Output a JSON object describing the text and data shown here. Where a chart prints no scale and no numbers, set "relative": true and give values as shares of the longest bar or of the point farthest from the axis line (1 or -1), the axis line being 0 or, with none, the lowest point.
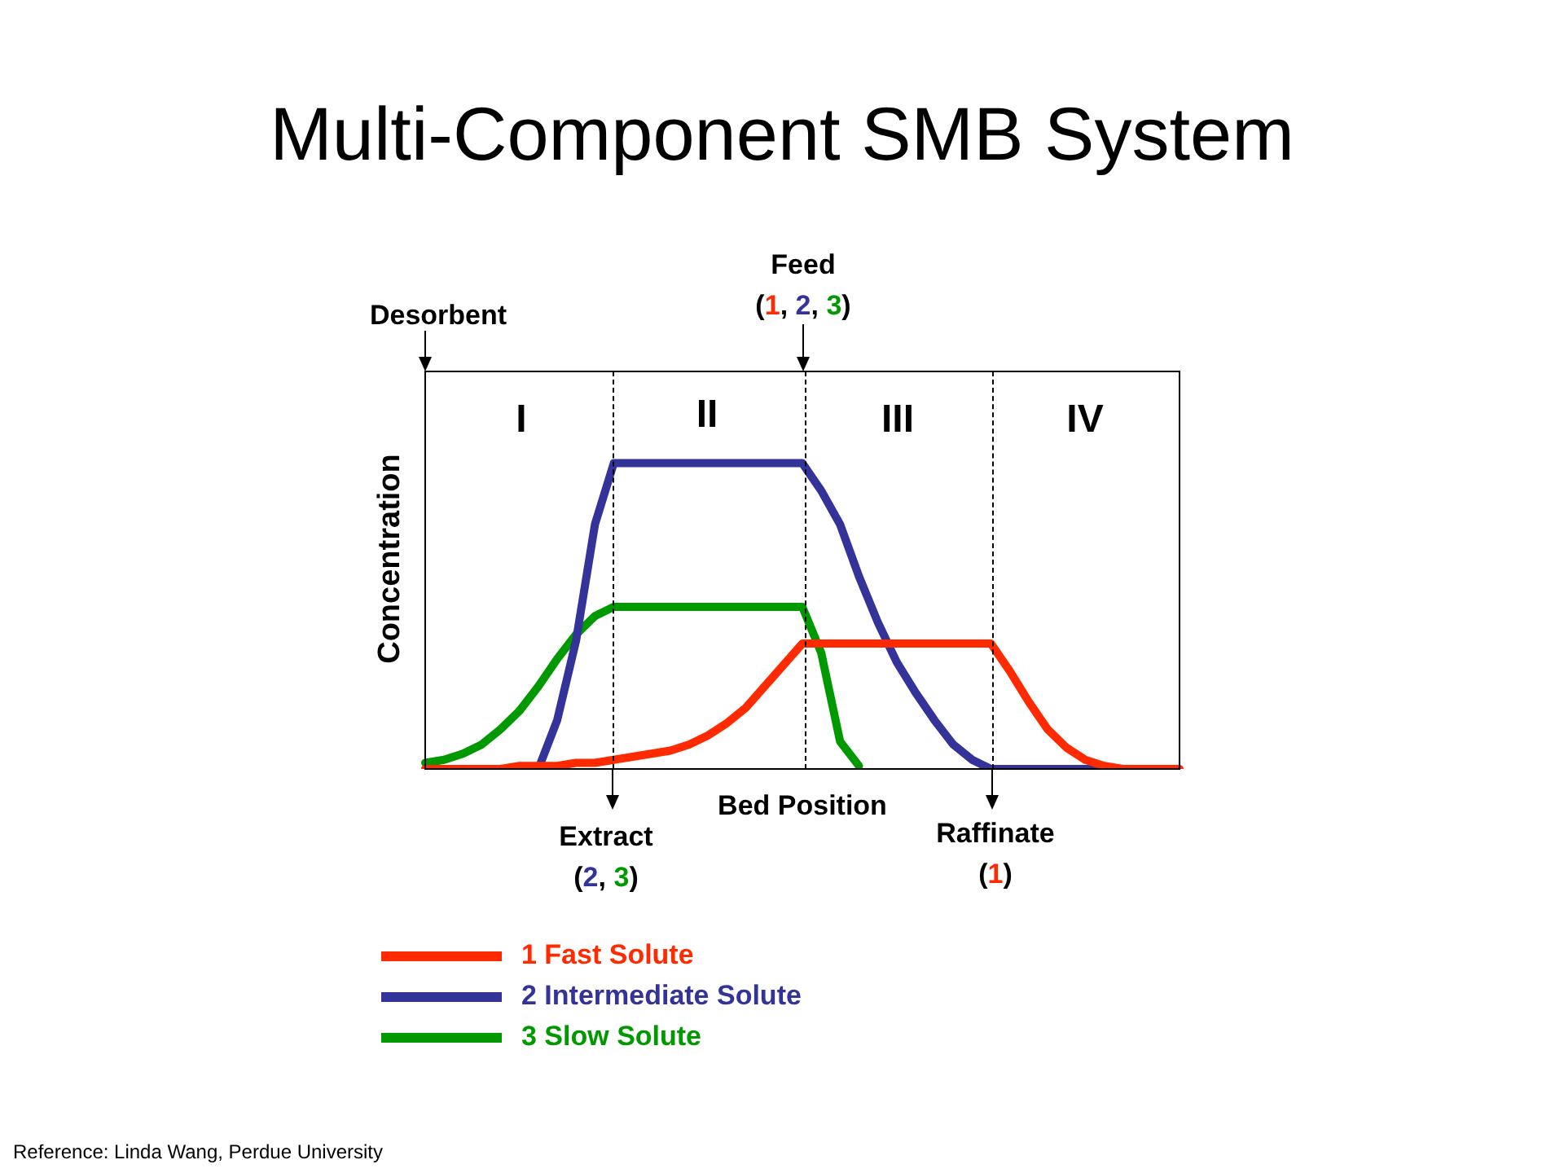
{
  "chart_data": {
    "type": "line",
    "title": "Multi-Component SMB System",
    "xlabel": "Bed Position",
    "ylabel": "Concentration",
    "relative": true,
    "marker": "none",
    "line_style": "solid",
    "legend": "bottom left",
    "categories": [
      null,
      null,
      null,
      null,
      null,
      null,
      null,
      null,
      null,
      null,
      null,
      null,
      null,
      null,
      null,
      null,
      null,
      null,
      null,
      null,
      null,
      null,
      null,
      null,
      null,
      null,
      null,
      null,
      null,
      null,
      null,
      null,
      null,
      null,
      null,
      null,
      null,
      null,
      null,
      null,
      null
    ],
    "series": [
      {
        "name": "1 Fast Solute",
        "color": "#ff2a00",
        "values": [
          0,
          0,
          0,
          0,
          0,
          0.01,
          0.01,
          0.01,
          0.02,
          0.02,
          0.03,
          0.04,
          0.05,
          0.06,
          0.08,
          0.11,
          0.15,
          0.2,
          0.27,
          0.34,
          0.41,
          0.41,
          0.41,
          0.41,
          0.41,
          0.41,
          0.41,
          0.41,
          0.41,
          0.41,
          0.41,
          0.32,
          0.22,
          0.13,
          0.07,
          0.03,
          0.01,
          0,
          0,
          0,
          0
        ]
      },
      {
        "name": "2 Intermediate Solute",
        "color": "#333399",
        "values": [
          null,
          null,
          null,
          null,
          null,
          null,
          0,
          0.16,
          0.42,
          0.8,
          1,
          1,
          1,
          1,
          1,
          1,
          1,
          1,
          1,
          1,
          1,
          0.91,
          0.8,
          0.63,
          0.48,
          0.35,
          0.25,
          0.16,
          0.08,
          0.03,
          0,
          0,
          0,
          0,
          0,
          0,
          0,
          0,
          null,
          null,
          null
        ]
      },
      {
        "name": "3 Slow Solute",
        "color": "#009900",
        "values": [
          0.02,
          0.03,
          0.05,
          0.08,
          0.13,
          0.19,
          0.27,
          0.36,
          0.44,
          0.5,
          0.53,
          0.53,
          0.53,
          0.53,
          0.53,
          0.53,
          0.53,
          0.53,
          0.53,
          0.53,
          0.53,
          0.38,
          0.09,
          0.01,
          null,
          null,
          null,
          null,
          null,
          null,
          null,
          null,
          null,
          null,
          null,
          null,
          null,
          null,
          null,
          null,
          null
        ]
      }
    ],
    "annotations": [
      "I",
      "II",
      "III",
      "IV",
      "Desorbent",
      "Feed\n(1, 2, 3)",
      "Extract\n(2, 3)",
      "Raffinate\n(1)",
      "Reference: Linda Wang, Perdue University"
    ]
  }
}
